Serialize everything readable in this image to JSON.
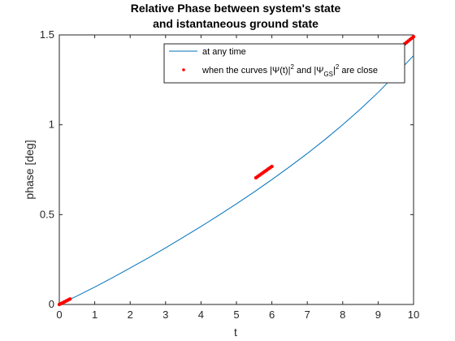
{
  "chart_data": {
    "type": "line",
    "title": [
      "Relative Phase between system's state",
      "and istantaneous ground state"
    ],
    "xlabel": "t",
    "ylabel": "phase [deg]",
    "xlim": [
      0,
      10
    ],
    "ylim": [
      0,
      1.5
    ],
    "xticks": [
      0,
      1,
      2,
      3,
      4,
      5,
      6,
      7,
      8,
      9,
      10
    ],
    "xtick_labels": [
      "0",
      "1",
      "2",
      "3",
      "4",
      "5",
      "6",
      "7",
      "8",
      "9",
      "10"
    ],
    "yticks": [
      0,
      0.5,
      1,
      1.5
    ],
    "ytick_labels": [
      "0",
      "0.5",
      "1",
      "1.5"
    ],
    "grid": false,
    "legend_position": "top-right",
    "colors": {
      "line": "#0072BD",
      "marker": "#FF0000",
      "axes": "#262626"
    },
    "series": [
      {
        "name": "at any time",
        "style": "line",
        "x": [
          0,
          0.5,
          1,
          1.5,
          2,
          2.5,
          3,
          3.5,
          4,
          4.5,
          5,
          5.5,
          6,
          6.5,
          7,
          7.5,
          8,
          8.5,
          9,
          9.5,
          10
        ],
        "y": [
          0,
          0.047,
          0.097,
          0.149,
          0.203,
          0.258,
          0.315,
          0.374,
          0.434,
          0.496,
          0.56,
          0.626,
          0.695,
          0.766,
          0.84,
          0.918,
          1.0,
          1.087,
          1.18,
          1.28,
          1.385
        ]
      },
      {
        "name_parts": [
          "when the curves |Ψ(t)|",
          "2",
          " and |Ψ",
          "GS",
          "|",
          "2",
          " are close"
        ],
        "style": "markers",
        "segments": [
          {
            "x": [
              0,
              0.05,
              0.1,
              0.15,
              0.2,
              0.25,
              0.3
            ],
            "y": [
              0,
              0.005,
              0.01,
              0.015,
              0.02,
              0.025,
              0.03
            ]
          },
          {
            "x": [
              5.55,
              5.6,
              5.65,
              5.7,
              5.75,
              5.8,
              5.85,
              5.9,
              5.95,
              6.0
            ],
            "y": [
              0.705,
              0.712,
              0.719,
              0.726,
              0.733,
              0.74,
              0.747,
              0.754,
              0.761,
              0.768
            ]
          },
          {
            "x": [
              9.75,
              9.8,
              9.85,
              9.9,
              9.95,
              10.0
            ],
            "y": [
              1.45,
              1.458,
              1.466,
              1.474,
              1.482,
              1.49
            ]
          }
        ]
      }
    ]
  }
}
